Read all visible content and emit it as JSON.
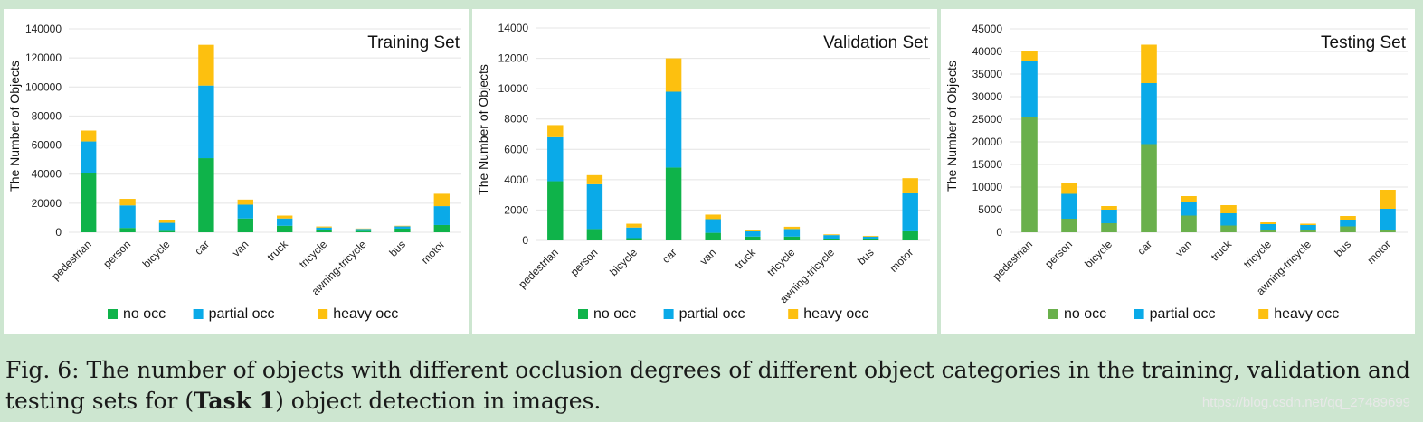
{
  "chart_data": [
    {
      "type": "bar",
      "stacked": true,
      "title": "Training Set",
      "ylabel": "The Number of Objects",
      "xlabel": "",
      "categories": [
        "pedestrian",
        "person",
        "bicycle",
        "car",
        "van",
        "truck",
        "tricycle",
        "awning-tricycle",
        "bus",
        "motor"
      ],
      "series": [
        {
          "name": "no occ",
          "color": "#0fb34a",
          "values": [
            40500,
            3000,
            1000,
            51000,
            9500,
            4500,
            1500,
            1000,
            2500,
            5000
          ]
        },
        {
          "name": "partial occ",
          "color": "#0aaae8",
          "values": [
            22000,
            15500,
            5500,
            50000,
            9500,
            5000,
            1800,
            1300,
            1600,
            13000
          ]
        },
        {
          "name": "heavy occ",
          "color": "#fdc00f",
          "values": [
            7500,
            4500,
            2000,
            28000,
            3500,
            2000,
            700,
            300,
            400,
            8500
          ]
        }
      ],
      "ylim": [
        0,
        140000
      ],
      "yticks": [
        "0",
        "20000",
        "40000",
        "60000",
        "80000",
        "100000",
        "120000",
        "140000"
      ],
      "legend_position": "bottom",
      "grid": true
    },
    {
      "type": "bar",
      "stacked": true,
      "title": "Validation Set",
      "ylabel": "The Number of Objects",
      "xlabel": "",
      "categories": [
        "pedestrian",
        "person",
        "bicycle",
        "car",
        "van",
        "truck",
        "tricycle",
        "awning-tricycle",
        "bus",
        "motor"
      ],
      "series": [
        {
          "name": "no occ",
          "color": "#0fb34a",
          "values": [
            3900,
            750,
            150,
            4800,
            500,
            250,
            250,
            100,
            120,
            600
          ]
        },
        {
          "name": "partial occ",
          "color": "#0aaae8",
          "values": [
            2900,
            2950,
            700,
            5000,
            900,
            350,
            500,
            250,
            130,
            2500
          ]
        },
        {
          "name": "heavy occ",
          "color": "#fdc00f",
          "values": [
            800,
            600,
            250,
            2200,
            300,
            100,
            150,
            50,
            50,
            1000
          ]
        }
      ],
      "ylim": [
        0,
        14000
      ],
      "yticks": [
        "0",
        "2000",
        "4000",
        "6000",
        "8000",
        "10000",
        "12000",
        "14000"
      ],
      "legend_position": "bottom",
      "grid": true
    },
    {
      "type": "bar",
      "stacked": true,
      "title": "Testing Set",
      "ylabel": "The Number of Objects",
      "xlabel": "",
      "categories": [
        "pedestrian",
        "person",
        "bicycle",
        "car",
        "van",
        "truck",
        "tricycle",
        "awning-tricycle",
        "bus",
        "motor"
      ],
      "series": [
        {
          "name": "no occ",
          "color": "#6ab04c",
          "values": [
            25500,
            3000,
            2000,
            19500,
            3700,
            1500,
            500,
            500,
            1300,
            500
          ]
        },
        {
          "name": "partial occ",
          "color": "#0aaae8",
          "values": [
            12500,
            5500,
            3000,
            13500,
            3000,
            2700,
            1300,
            1100,
            1500,
            4700
          ]
        },
        {
          "name": "heavy occ",
          "color": "#fdc00f",
          "values": [
            2200,
            2500,
            800,
            8500,
            1300,
            1800,
            400,
            300,
            800,
            4200
          ]
        }
      ],
      "ylim": [
        0,
        45000
      ],
      "yticks": [
        "0",
        "5000",
        "10000",
        "15000",
        "20000",
        "25000",
        "30000",
        "35000",
        "40000",
        "45000"
      ],
      "legend_position": "bottom",
      "grid": true
    }
  ],
  "caption": {
    "prefix": "Fig. 6: The number of objects with different occlusion degrees of different object categories in the training, validation and testing sets for (",
    "bold": "Task 1",
    "suffix": ") object detection in images."
  },
  "watermark": "https://blog.csdn.net/qq_27489699"
}
